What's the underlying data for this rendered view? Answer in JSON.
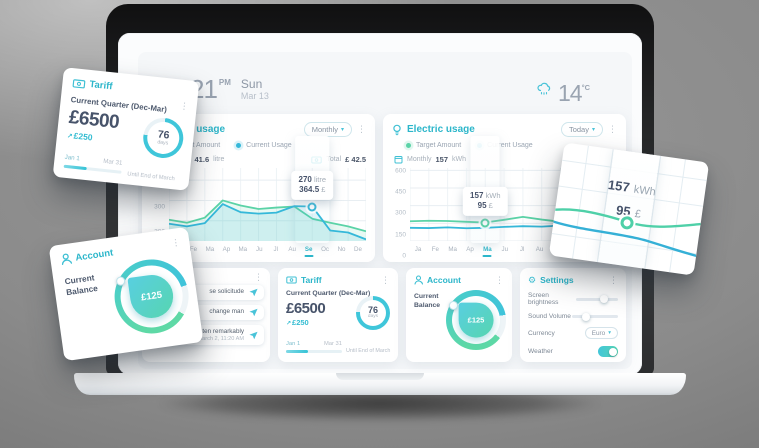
{
  "icons": {
    "kebab": "⋮",
    "caret": "▾",
    "trend_up": "↗",
    "gear": "⚙"
  },
  "clock": {
    "time": "21",
    "meridiem": "PM",
    "day": "Sun",
    "date": "Mar 13"
  },
  "weather": {
    "temp": "14",
    "unit": "°C"
  },
  "water_card": {
    "title": "Water usage",
    "dropdown": "Monthly",
    "legend": [
      "Target Amount",
      "Current Usage"
    ],
    "monthly_label": "Monthly",
    "monthly_value": "41.6",
    "monthly_unit": "litre",
    "total_label": "Total",
    "total_value": "£ 42.5",
    "tooltip": {
      "value": "270",
      "unit": "litre",
      "cost": "364.5",
      "currency": "£"
    }
  },
  "electric_card": {
    "title": "Electric usage",
    "dropdown": "Today",
    "legend": [
      "Target Amount",
      "Current Usage"
    ],
    "monthly_label": "Monthly",
    "monthly_value": "157",
    "monthly_unit": "kWh",
    "tooltip": {
      "value": "157",
      "unit": "kWh",
      "cost": "95",
      "currency": "£"
    }
  },
  "messages_card": {
    "items": [
      {
        "text": "se solicitude",
        "time": ""
      },
      {
        "text": "change man",
        "time": ""
      },
      {
        "text": "Indulgence ten remarkably",
        "time": "March 2, 11:20 AM"
      }
    ]
  },
  "tariff_card": {
    "title": "Tariff",
    "period": "Current Quarter (Dec-Mar)",
    "amount": "£6500",
    "delta": "£250",
    "days_value": "76",
    "days_unit": "days",
    "range_start": "Jan 1",
    "range_end": "Mar 31",
    "footnote": "Until End of March",
    "ring_pct": 76,
    "progress_pct": 40
  },
  "account_card": {
    "title": "Account",
    "label": "Current Balance",
    "balance": "£125"
  },
  "settings_card": {
    "title": "Settings",
    "brightness_label": "Screen brightness",
    "brightness_pct": 66,
    "volume_label": "Sound Volume",
    "volume_pct": 30,
    "currency_label": "Currency",
    "currency_value": "Euro",
    "weather_label": "Weather",
    "weather_on": true
  },
  "floating_zoom": {
    "value": "157",
    "unit": "kWh",
    "cost": "95",
    "currency": "£"
  },
  "chart_data": [
    {
      "type": "line",
      "title": "Water usage",
      "categories": [
        "Ja",
        "Fe",
        "Ma",
        "Ap",
        "Ma",
        "Ju",
        "Jl",
        "Au",
        "Se",
        "Oc",
        "No",
        "De"
      ],
      "active_index": 8,
      "ylim": [
        100,
        460
      ],
      "yticks": [
        400,
        300,
        200
      ],
      "series": [
        {
          "name": "Target Amount",
          "color": "#5bd3a7",
          "area": true,
          "values": [
            205,
            190,
            215,
            300,
            275,
            258,
            265,
            270,
            210,
            190,
            172,
            148
          ]
        },
        {
          "name": "Current Usage",
          "color": "#35b8d9",
          "area": true,
          "values": [
            185,
            172,
            188,
            282,
            242,
            235,
            240,
            272,
            270,
            152,
            142,
            108
          ]
        }
      ],
      "marker": {
        "series": 1,
        "index": 8
      },
      "tooltip": {
        "value": 270,
        "unit": "litre",
        "cost": 364.5,
        "currency": "£"
      }
    },
    {
      "type": "line",
      "title": "Electric usage",
      "categories": [
        "Ja",
        "Fe",
        "Ma",
        "Ap",
        "Ma",
        "Ju",
        "Jl",
        "Au",
        "Se",
        "Oc",
        "No",
        "De"
      ],
      "active_index": 4,
      "ylim": [
        0,
        620
      ],
      "yticks": [
        600,
        450,
        300,
        150,
        0
      ],
      "series": [
        {
          "name": "Target Amount",
          "color": "#5bd3a7",
          "area": false,
          "values": [
            168,
            172,
            170,
            163,
            157,
            180,
            205,
            182,
            163,
            172,
            168,
            174
          ]
        },
        {
          "name": "Current Usage",
          "color": "#35b8d9",
          "area": false,
          "values": [
            112,
            110,
            116,
            108,
            112,
            120,
            126,
            122,
            131,
            118,
            112,
            117
          ]
        }
      ],
      "marker": {
        "series": 0,
        "index": 4
      },
      "tooltip": {
        "value": 157,
        "unit": "kWh",
        "cost": 95,
        "currency": "£"
      }
    }
  ]
}
